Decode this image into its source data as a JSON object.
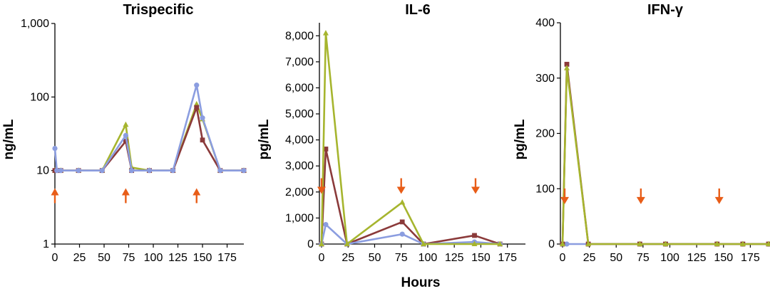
{
  "chart_data": [
    {
      "type": "line",
      "title": "Trispecific",
      "ylabel": "ng/mL",
      "xlabel": "",
      "yscale": "log",
      "ylim": [
        1,
        1000
      ],
      "xlim": [
        0,
        192
      ],
      "yticks": [
        {
          "v": 1,
          "label": "1"
        },
        {
          "v": 10,
          "label": "10"
        },
        {
          "v": 100,
          "label": "100"
        },
        {
          "v": 1000,
          "label": "1,000"
        }
      ],
      "xticks": [
        {
          "v": 0,
          "label": "0"
        },
        {
          "v": 25,
          "label": "25"
        },
        {
          "v": 50,
          "label": "50"
        },
        {
          "v": 75,
          "label": "75"
        },
        {
          "v": 100,
          "label": "100"
        },
        {
          "v": 125,
          "label": "125"
        },
        {
          "v": 150,
          "label": "150"
        },
        {
          "v": 175,
          "label": "175"
        }
      ],
      "dosing_arrows": {
        "direction": "up",
        "x": [
          0,
          72,
          144
        ],
        "y": 4.5
      },
      "series": [
        {
          "name": "series-green",
          "color": "#a6b52e",
          "marker": "triangle",
          "x": [
            0,
            2,
            6,
            24,
            48,
            72,
            78,
            96,
            120,
            144,
            150,
            168,
            192
          ],
          "y": [
            10,
            10,
            10,
            10,
            10,
            42,
            11,
            10,
            10,
            80,
            50,
            10,
            10
          ]
        },
        {
          "name": "series-brown",
          "color": "#8b3a3a",
          "marker": "square",
          "x": [
            0,
            2,
            6,
            24,
            48,
            72,
            78,
            96,
            120,
            144,
            150,
            168,
            192
          ],
          "y": [
            10,
            10,
            10,
            10,
            10,
            25,
            10,
            10,
            10,
            72,
            26,
            10,
            10
          ]
        },
        {
          "name": "series-blue",
          "color": "#8b9de0",
          "marker": "circle",
          "x": [
            0,
            2,
            6,
            24,
            48,
            72,
            78,
            96,
            120,
            144,
            150,
            168,
            192
          ],
          "y": [
            20,
            10,
            10,
            10,
            10,
            30,
            10,
            10,
            10,
            145,
            52,
            10,
            10
          ]
        }
      ]
    },
    {
      "type": "line",
      "title": "IL-6",
      "ylabel": "pg/mL",
      "xlabel": "",
      "yscale": "linear",
      "ylim": [
        0,
        8500
      ],
      "xlim": [
        -2,
        192
      ],
      "yticks": [
        {
          "v": 0,
          "label": "0"
        },
        {
          "v": 1000,
          "label": "1,000"
        },
        {
          "v": 2000,
          "label": "2,000"
        },
        {
          "v": 3000,
          "label": "3,000"
        },
        {
          "v": 4000,
          "label": "4,000"
        },
        {
          "v": 5000,
          "label": "5,000"
        },
        {
          "v": 6000,
          "label": "6,000"
        },
        {
          "v": 7000,
          "label": "7,000"
        },
        {
          "v": 8000,
          "label": "8,000"
        }
      ],
      "xticks": [
        {
          "v": 0,
          "label": "0"
        },
        {
          "v": 25,
          "label": "25"
        },
        {
          "v": 50,
          "label": "50"
        },
        {
          "v": 75,
          "label": "75"
        },
        {
          "v": 100,
          "label": "100"
        },
        {
          "v": 125,
          "label": "125"
        },
        {
          "v": 150,
          "label": "150"
        },
        {
          "v": 175,
          "label": "175"
        }
      ],
      "dosing_arrows": {
        "direction": "down",
        "x": [
          0,
          75,
          145
        ],
        "y": 2200
      },
      "series": [
        {
          "name": "series-brown",
          "color": "#8b3a3a",
          "marker": "square",
          "x": [
            0,
            4,
            24,
            76,
            96,
            144,
            168
          ],
          "y": [
            0,
            3650,
            0,
            850,
            0,
            330,
            0
          ]
        },
        {
          "name": "series-blue",
          "color": "#8b9de0",
          "marker": "circle",
          "x": [
            0,
            4,
            24,
            76,
            96,
            144,
            168
          ],
          "y": [
            0,
            750,
            0,
            380,
            0,
            80,
            0
          ]
        },
        {
          "name": "series-green",
          "color": "#a6b52e",
          "marker": "triangle",
          "x": [
            0,
            4,
            24,
            76,
            96,
            144,
            168
          ],
          "y": [
            0,
            8100,
            0,
            1600,
            0,
            0,
            0
          ]
        }
      ]
    },
    {
      "type": "line",
      "title": "IFN-γ",
      "ylabel": "pg/mL",
      "xlabel": "Hours",
      "yscale": "linear",
      "ylim": [
        0,
        400
      ],
      "xlim": [
        -2,
        192
      ],
      "yticks": [
        {
          "v": 0,
          "label": "0"
        },
        {
          "v": 100,
          "label": "100"
        },
        {
          "v": 200,
          "label": "200"
        },
        {
          "v": 300,
          "label": "300"
        },
        {
          "v": 400,
          "label": "400"
        }
      ],
      "xticks": [
        {
          "v": 0,
          "label": "0"
        },
        {
          "v": 25,
          "label": "25"
        },
        {
          "v": 50,
          "label": "50"
        },
        {
          "v": 75,
          "label": "75"
        },
        {
          "v": 100,
          "label": "100"
        },
        {
          "v": 125,
          "label": "125"
        },
        {
          "v": 150,
          "label": "150"
        },
        {
          "v": 175,
          "label": "175"
        }
      ],
      "dosing_arrows": {
        "direction": "down",
        "x": [
          2,
          73,
          146
        ],
        "y": 85
      },
      "series": [
        {
          "name": "series-blue",
          "color": "#8b9de0",
          "marker": "circle",
          "x": [
            0,
            4,
            24,
            72,
            96,
            144,
            168,
            192
          ],
          "y": [
            0,
            0,
            0,
            0,
            0,
            0,
            0,
            0
          ]
        },
        {
          "name": "series-brown",
          "color": "#8b3a3a",
          "marker": "square",
          "x": [
            0,
            4,
            24,
            72,
            96,
            144,
            168,
            192
          ],
          "y": [
            0,
            325,
            0,
            0,
            0,
            0,
            0,
            0
          ]
        },
        {
          "name": "series-green",
          "color": "#a6b52e",
          "marker": "triangle",
          "x": [
            0,
            4,
            24,
            72,
            96,
            144,
            168,
            192
          ],
          "y": [
            0,
            318,
            0,
            0,
            0,
            0,
            0,
            0
          ]
        }
      ]
    }
  ],
  "colors": {
    "arrow": "#e85d18",
    "axis": "#000000"
  }
}
